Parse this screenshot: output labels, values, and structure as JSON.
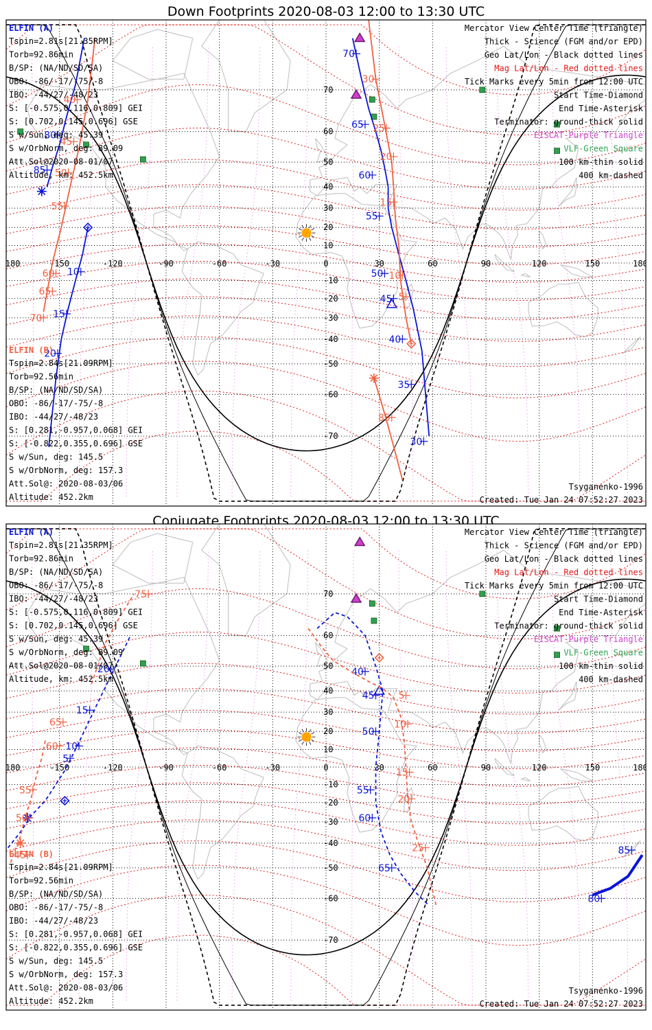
{
  "colors": {
    "elfin_a": "#0a14d8",
    "elfin_b": "#f06040",
    "mag_grid": "#e01818",
    "geo_grid": "#000000",
    "eiscat": "#d040d0",
    "vlf": "#30a050",
    "coast": "#bdbdbd",
    "sun": "#ffa500"
  },
  "legend_right": [
    {
      "text": "Mercator View Center Time (triangle)",
      "color": "#000000"
    },
    {
      "text": "Thick - Science (FGM and/or EPD)",
      "color": "#000000"
    },
    {
      "text": "Geo Lat/Lon - Black dotted lines",
      "color": "#000000"
    },
    {
      "text": "Mag Lat/Lon - Red dotted lines",
      "color": "#e01818"
    },
    {
      "text": "Tick Marks every 5min from 12:00 UTC",
      "color": "#000000"
    },
    {
      "text": "Start Time-Diamond",
      "color": "#000000"
    },
    {
      "text": "End Time-Asterisk",
      "color": "#000000"
    },
    {
      "text": "Terminator: ground-thick solid",
      "color": "#000000"
    },
    {
      "text": "EISCAT-Purple Triangle",
      "color": "#d040d0"
    },
    {
      "text": "VLF-Green Square",
      "color": "#30a050"
    },
    {
      "text": "100 km-thin solid",
      "color": "#000000"
    },
    {
      "text": "400 km-dashed",
      "color": "#000000"
    }
  ],
  "info_a": {
    "name": "ELFIN (A)",
    "lines": [
      "Tspin=2.81s[21.35RPM]",
      "Torb=92.86min",
      "B/SP: (NA/ND/SD/SA)",
      "OBO: -86/-17/-75/-8",
      "IBO: -44/27/-48/23",
      "S: [-0.575,0.116,0.809] GEI",
      "S: [0.702,0.145,0.696] GSE",
      "S w/Sun, deg: 45.39",
      "S w/OrbNorm, deg: 89.09",
      "Att.Sol@2020-08-01/07",
      "Altitude, km: 452.5km"
    ]
  },
  "info_b": {
    "name": "ELFIN (B)",
    "lines": [
      "Tspin=2.84s[21.09RPM]",
      "Torb=92.56min",
      "B/SP: (NA/ND/SD/SA)",
      "OBO: -86/-17/-75/-8",
      "IBO: -44/27/-48/23",
      "S: [0.281,-0.957,0.068] GEI",
      "S: [-0.822,0.355,0.696] GSE",
      "S w/Sun, deg: 145.5",
      "S w/OrbNorm, deg: 157.3",
      "Att.Sol@: 2020-08-03/06",
      "Altitude: 452.2km"
    ]
  },
  "model": "Tsyganenko-1996",
  "created": "Created: Tue Jan 24 07:52:27 2023",
  "chart_data": [
    {
      "type": "scatter",
      "title": "Down Footprints 2020-08-03 12:00 to 13:30 UTC",
      "projection": "mercator",
      "xlim": [
        -180,
        180
      ],
      "ylim": [
        -80,
        80
      ],
      "x_ticks": [
        "-180",
        "-150",
        "-120",
        "-90",
        "-60",
        "-30",
        "0",
        "30",
        "60",
        "90",
        "120",
        "150",
        "180"
      ],
      "y_ticks": [
        "70",
        "60",
        "50",
        "40",
        "30",
        "20",
        "10",
        "-10",
        "-20",
        "-30",
        "-40",
        "-50",
        "-60",
        "-70"
      ],
      "series": [
        {
          "name": "ELFIN (A)",
          "color": "#0a14d8",
          "segments": [
            {
              "lon": [
                -134,
                -137,
                -141,
                -145,
                -149,
                -152,
                -156
              ],
              "lat": [
                20,
                5,
                -10,
                -25,
                -40,
                -55,
                -72
              ]
            },
            {
              "lon": [
                -157,
                -154,
                -150,
                -146,
                -141,
                -136
              ],
              "lat": [
                40,
                48,
                56,
                64,
                71,
                78
              ]
            },
            {
              "lon": [
                15,
                20,
                24,
                28,
                31,
                33,
                35,
                35,
                37,
                41,
                45,
                49,
                54,
                58
              ],
              "lat": [
                78,
                72,
                66,
                60,
                54,
                48,
                40,
                30,
                20,
                5,
                -10,
                -25,
                -45,
                -70
              ]
            }
          ],
          "tick_labels": [
            {
              "text": "10",
              "lon": -138,
              "lat": -5
            },
            {
              "text": "15",
              "lon": -146,
              "lat": -28
            },
            {
              "text": "20",
              "lon": -151,
              "lat": -46
            },
            {
              "text": "80",
              "lon": -151,
              "lat": 59
            },
            {
              "text": "85",
              "lon": -157,
              "lat": 47
            },
            {
              "text": "70",
              "lon": 17,
              "lat": 76
            },
            {
              "text": "65",
              "lon": 22,
              "lat": 62
            },
            {
              "text": "60",
              "lon": 26,
              "lat": 45
            },
            {
              "text": "55",
              "lon": 30,
              "lat": 26
            },
            {
              "text": "50",
              "lon": 33,
              "lat": -6
            },
            {
              "text": "45",
              "lon": 38,
              "lat": -20
            },
            {
              "text": "40",
              "lon": 43,
              "lat": -40
            },
            {
              "text": "35",
              "lon": 48,
              "lat": -57
            },
            {
              "text": "30",
              "lon": 55,
              "lat": -71
            }
          ],
          "start": {
            "lon": -134,
            "lat": 20
          },
          "end": {
            "lon": -160,
            "lat": 38
          },
          "center": {
            "lon": 37,
            "lat": -23
          }
        },
        {
          "name": "ELFIN (B)",
          "color": "#f06040",
          "segments": [
            {
              "lon": [
                -130,
                -134,
                -139,
                -144,
                -149,
                -154,
                -159
              ],
              "lat": [
                78,
                68,
                55,
                40,
                20,
                0,
                -27
              ]
            },
            {
              "lon": [
                24,
                28,
                33,
                37,
                38,
                39,
                41,
                42,
                45,
                48
              ],
              "lat": [
                80,
                72,
                62,
                50,
                40,
                25,
                10,
                -10,
                -30,
                -42
              ]
            },
            {
              "lon": [
                27,
                31,
                35,
                39,
                43
              ],
              "lat": [
                -55,
                -62,
                -68,
                -73,
                -77
              ]
            }
          ],
          "tick_labels": [
            {
              "text": "40",
              "lon": -140,
              "lat": 68
            },
            {
              "text": "45",
              "lon": -142,
              "lat": 57
            },
            {
              "text": "50",
              "lon": -145,
              "lat": 46
            },
            {
              "text": "55",
              "lon": -147,
              "lat": 31
            },
            {
              "text": "60",
              "lon": -152,
              "lat": -6
            },
            {
              "text": "65",
              "lon": -154,
              "lat": -16
            },
            {
              "text": "70",
              "lon": -159,
              "lat": -30
            },
            {
              "text": "30",
              "lon": 28,
              "lat": 72
            },
            {
              "text": "25",
              "lon": 34,
              "lat": 61
            },
            {
              "text": "20",
              "lon": 38,
              "lat": 52
            },
            {
              "text": "15",
              "lon": 38,
              "lat": 33
            },
            {
              "text": "10",
              "lon": 43,
              "lat": -7
            },
            {
              "text": "5",
              "lon": 45,
              "lat": -19
            },
            {
              "text": "85",
              "lon": 37,
              "lat": -66
            }
          ],
          "start": {
            "lon": 48,
            "lat": -42
          },
          "end": {
            "lon": 27,
            "lat": -55
          }
        }
      ],
      "eiscat": [
        {
          "lon": 17,
          "lat": 69
        },
        {
          "lon": 19,
          "lat": 78
        }
      ],
      "vlf": [
        {
          "lon": 26,
          "lat": 68
        },
        {
          "lon": 27,
          "lat": 64
        },
        {
          "lon": 88,
          "lat": 70
        },
        {
          "lon": -172,
          "lat": 60
        },
        {
          "lon": -135,
          "lat": 56
        },
        {
          "lon": -103,
          "lat": 51
        },
        {
          "lon": 130,
          "lat": 62
        },
        {
          "lon": 130,
          "lat": 54
        }
      ],
      "sun": {
        "lon": -11,
        "lat": 17
      }
    },
    {
      "type": "scatter",
      "title": "Conjugate Footprints 2020-08-03 12:00 to 13:30 UTC",
      "projection": "mercator",
      "xlim": [
        -180,
        180
      ],
      "ylim": [
        -80,
        80
      ],
      "x_ticks": [
        "-180",
        "-150",
        "-120",
        "-90",
        "-60",
        "-30",
        "0",
        "30",
        "60",
        "90",
        "120",
        "150",
        "180"
      ],
      "y_ticks": [
        "70",
        "60",
        "50",
        "40",
        "30",
        "20",
        "10",
        "-10",
        "-20",
        "-30",
        "-40",
        "-50",
        "-60",
        "-70"
      ],
      "series": [
        {
          "name": "ELFIN (A)",
          "color": "#0a14d8",
          "segments": [
            {
              "lon": [
                -179,
                -172,
                -166,
                -158,
                -147,
                -140,
                -131,
                -122,
                -110
              ],
              "lat": [
                -42,
                -35,
                -27,
                -19,
                -2,
                12,
                30,
                45,
                60
              ]
            },
            {
              "lon": [
                -5,
                5,
                12,
                22,
                28,
                32,
                30,
                28,
                28,
                31,
                36,
                42,
                50,
                58
              ],
              "lat": [
                62,
                66,
                65,
                60,
                50,
                40,
                20,
                0,
                -20,
                -35,
                -45,
                -52,
                -58,
                -62
              ]
            }
          ],
          "tick_labels": [
            {
              "text": "5",
              "lon": -144,
              "lat": 5
            },
            {
              "text": "10",
              "lon": -139,
              "lat": 12
            },
            {
              "text": "15",
              "lon": -133,
              "lat": 31
            },
            {
              "text": "20",
              "lon": -121,
              "lat": 49
            },
            {
              "text": "40",
              "lon": 22,
              "lat": 48
            },
            {
              "text": "45",
              "lon": 28,
              "lat": 38
            },
            {
              "text": "50",
              "lon": 28,
              "lat": 20
            },
            {
              "text": "55",
              "lon": 25,
              "lat": -13
            },
            {
              "text": "60",
              "lon": 26,
              "lat": -28
            },
            {
              "text": "65",
              "lon": 37,
              "lat": -50
            },
            {
              "text": "80",
              "lon": 155,
              "lat": -60
            },
            {
              "text": "85",
              "lon": 172,
              "lat": -43
            }
          ],
          "start": {
            "lon": -147,
            "lat": -19
          },
          "end": {
            "lon": -168,
            "lat": -28
          },
          "center": {
            "lon": 30,
            "lat": 40
          },
          "thick": {
            "lon": [
              150,
              160,
              170,
              178
            ],
            "lat": [
              -59,
              -57,
              -53,
              -45
            ]
          }
        },
        {
          "name": "ELFIN (B)",
          "color": "#f06040",
          "segments": [
            {
              "lon": [
                -158,
                -160,
                -163,
                -166,
                -170,
                -172,
                -175,
                -178
              ],
              "lat": [
                15,
                5,
                -5,
                -18,
                -30,
                -37,
                -43,
                -49
              ]
            },
            {
              "lon": [
                -132,
                -124,
                -116,
                -108
              ],
              "lat": [
                43,
                58,
                65,
                70
              ]
            },
            {
              "lon": [
                -10,
                -3,
                4,
                14,
                24,
                32,
                38,
                42,
                44,
                45,
                46,
                48,
                52,
                57,
                62
              ],
              "lat": [
                62,
                57,
                52,
                48,
                44,
                41,
                37,
                28,
                15,
                0,
                -18,
                -30,
                -40,
                -50,
                -62
              ]
            }
          ],
          "tick_labels": [
            {
              "text": "75",
              "lon": -100,
              "lat": 70
            },
            {
              "text": "60",
              "lon": -150,
              "lat": 12
            },
            {
              "text": "65",
              "lon": -148,
              "lat": 25
            },
            {
              "text": "55",
              "lon": -165,
              "lat": -13
            },
            {
              "text": "50",
              "lon": -167,
              "lat": -28
            },
            {
              "text": "45",
              "lon": -168,
              "lat": -45
            },
            {
              "text": "5",
              "lon": 45,
              "lat": 38
            },
            {
              "text": "10",
              "lon": 46,
              "lat": 24
            },
            {
              "text": "15",
              "lon": 47,
              "lat": -3
            },
            {
              "text": "20",
              "lon": 48,
              "lat": -18
            },
            {
              "text": "25",
              "lon": 56,
              "lat": -42
            }
          ],
          "start": {
            "lon": 30,
            "lat": 53
          },
          "end": {
            "lon": -172,
            "lat": -40
          }
        }
      ],
      "eiscat": [
        {
          "lon": 17,
          "lat": 69
        },
        {
          "lon": 19,
          "lat": 78
        }
      ],
      "vlf": [
        {
          "lon": 26,
          "lat": 68
        },
        {
          "lon": 27,
          "lat": 64
        },
        {
          "lon": 88,
          "lat": 70
        },
        {
          "lon": -135,
          "lat": 56
        },
        {
          "lon": -103,
          "lat": 51
        },
        {
          "lon": 130,
          "lat": 62
        },
        {
          "lon": 130,
          "lat": 54
        }
      ],
      "sun": {
        "lon": -11,
        "lat": 17
      }
    }
  ]
}
